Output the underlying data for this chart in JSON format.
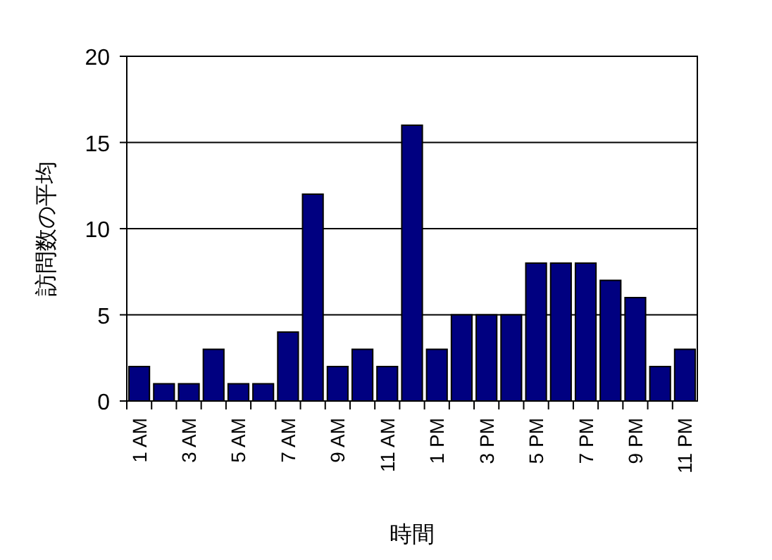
{
  "chart_data": {
    "type": "bar",
    "xlabel": "時間",
    "ylabel": "訪問数の平均",
    "categories": [
      "1 AM",
      null,
      "3 AM",
      null,
      "5 AM",
      null,
      "7 AM",
      null,
      "9 AM",
      null,
      "11 AM",
      null,
      "1 PM",
      null,
      "3 PM",
      null,
      "5 PM",
      null,
      "7 PM",
      null,
      "9 PM",
      null,
      "11 PM"
    ],
    "series": [
      {
        "color": "#000080",
        "values": [
          2,
          1,
          1,
          3,
          1,
          1,
          4,
          12,
          2,
          3,
          2,
          16,
          3,
          5,
          5,
          5,
          8,
          8,
          8,
          7,
          6,
          2,
          3
        ]
      }
    ],
    "ylim": [
      0,
      20
    ],
    "yticks": [
      0,
      5,
      10,
      15,
      20
    ],
    "grid": "y"
  }
}
